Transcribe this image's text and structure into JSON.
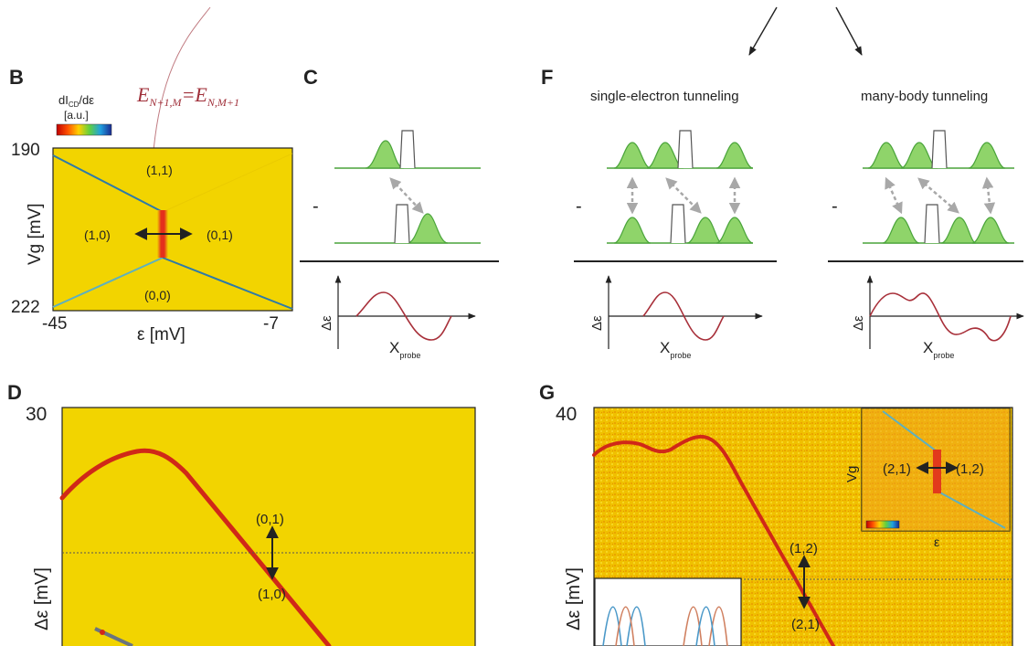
{
  "panels": {
    "B": {
      "letter": "B",
      "colorbar_label_line1": "dI",
      "colorbar_label_sub": "CD",
      "colorbar_label_rest": "/dε",
      "colorbar_units": "[a.u.]",
      "formula_E": "E",
      "formula_left_sub": "N+1,M",
      "formula_eq": "=E",
      "formula_right_sub": "N,M+1",
      "y_top": "190",
      "y_bottom": "222",
      "y_label": "Vg [mV]",
      "x_left": "-45",
      "x_right": "-7",
      "x_label": "ε [mV]",
      "regions": [
        "(1,1)",
        "(1,0)",
        "(0,1)",
        "(0,0)"
      ]
    },
    "C": {
      "letter": "C",
      "y_label": "Δε",
      "x_label_main": "X",
      "x_label_sub": "probe",
      "minus": "-"
    },
    "F": {
      "letter": "F",
      "title_left": "single-electron tunneling",
      "title_right": "many-body tunneling",
      "y_label": "Δε",
      "x_label_main": "X",
      "x_label_sub": "probe",
      "minus": "-"
    },
    "D": {
      "letter": "D",
      "y_top": "30",
      "y_label": "Δε [mV]",
      "label_upper": "(0,1)",
      "label_lower": "(1,0)"
    },
    "G": {
      "letter": "G",
      "y_top": "40",
      "y_label": "Δε [mV]",
      "label_upper": "(1,2)",
      "label_lower": "(2,1)",
      "inset_left": "(2,1)",
      "inset_right": "(1,2)",
      "inset_y_label": "Vg",
      "inset_x_label": "ε"
    }
  },
  "colors": {
    "map_yellow": "#f2d400",
    "ridge_red": "#c8221c",
    "line_blue": "#2e7aa8",
    "green_fill": "#8fd46a",
    "green_line": "#4aa43a",
    "curve": "#a8303a",
    "formula": "#a0303a",
    "arrow_gray": "#a8a8a8",
    "ink": "#222222"
  }
}
